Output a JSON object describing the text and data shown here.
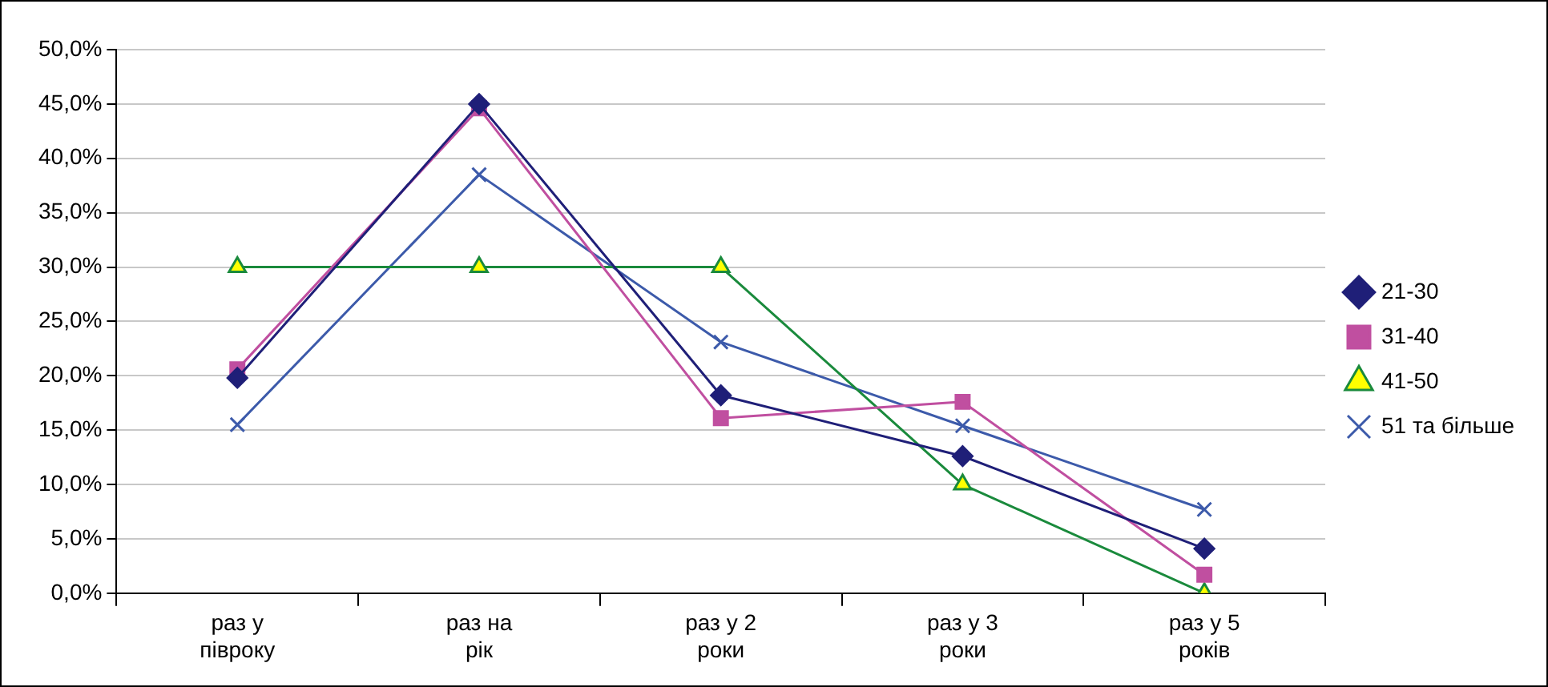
{
  "chart_data": {
    "type": "line",
    "categories": [
      "раз у\nпівроку",
      "раз на\nрік",
      "раз у 2\nроки",
      "раз у 3\nроки",
      "раз у 5\nроків"
    ],
    "series": [
      {
        "name": "21-30",
        "color": "#1f1f78",
        "marker": "diamond",
        "values": [
          19.8,
          45.0,
          18.2,
          12.6,
          4.1
        ]
      },
      {
        "name": "31-40",
        "color": "#c04fa0",
        "marker": "square",
        "values": [
          20.6,
          44.6,
          16.1,
          17.6,
          1.7
        ]
      },
      {
        "name": "41-50",
        "color": "#1a8a3c",
        "marker": "triangle",
        "colors": [
          "#ffff00",
          "#ffff00",
          "#ffff00",
          "#ffff00",
          "#ffff00"
        ],
        "values": [
          30,
          30,
          30,
          10,
          0
        ]
      },
      {
        "name": "51 та більше",
        "color": "#3c5aaa",
        "marker": "cross",
        "values": [
          15.5,
          38.5,
          23.1,
          15.4,
          7.7
        ]
      }
    ],
    "ylim": [
      0,
      50
    ],
    "yticks": [
      {
        "value": 0,
        "label": "0,0%"
      },
      {
        "value": 5,
        "label": "5,0%"
      },
      {
        "value": 10,
        "label": "10,0%"
      },
      {
        "value": 15,
        "label": "15,0%"
      },
      {
        "value": 20,
        "label": "20,0%"
      },
      {
        "value": 25,
        "label": "25,0%"
      },
      {
        "value": 30,
        "label": "30,0%"
      },
      {
        "value": 35,
        "label": "35,0%"
      },
      {
        "value": 40,
        "label": "40,0%"
      },
      {
        "value": 45,
        "label": "45,0%"
      },
      {
        "value": 50,
        "label": "50,0%"
      }
    ],
    "grid": "y",
    "legend": "right",
    "line_style": "solid"
  }
}
